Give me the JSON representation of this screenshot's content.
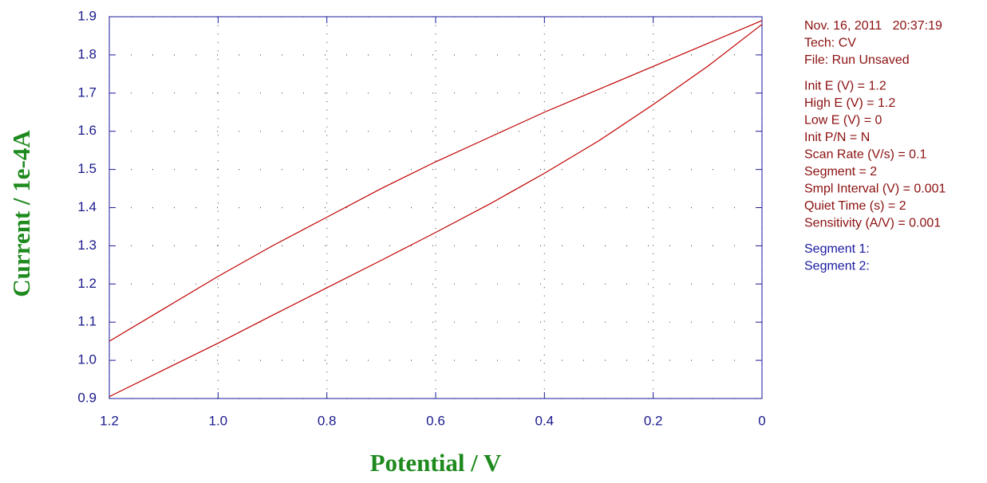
{
  "chart_data": {
    "type": "line",
    "xlabel": "Potential / V",
    "ylabel": "Current / 1e-4A",
    "xlim": [
      1.2,
      0
    ],
    "ylim": [
      0.9,
      1.9
    ],
    "xticks": [
      1.2,
      {
        "value": 1,
        "label": "1.0"
      },
      0.8,
      0.6,
      0.4,
      0.2,
      0
    ],
    "yticks": [
      0.9,
      {
        "value": 1,
        "label": "1.0"
      },
      1.1,
      1.2,
      1.3,
      1.4,
      1.5,
      1.6,
      1.7,
      1.8,
      1.9
    ],
    "grid": true,
    "series": [
      {
        "name": "Segment 1:",
        "color": "#c00000",
        "x": [
          1.2,
          1.1,
          1.0,
          0.9,
          0.8,
          0.7,
          0.6,
          0.5,
          0.4,
          0.3,
          0.2,
          0.1,
          0
        ],
        "values": [
          0.905,
          0.975,
          1.045,
          1.118,
          1.19,
          1.262,
          1.335,
          1.41,
          1.49,
          1.575,
          1.67,
          1.77,
          1.88
        ]
      },
      {
        "name": "Segment 2:",
        "color": "#c00000",
        "x": [
          0,
          0.1,
          0.2,
          0.3,
          0.4,
          0.5,
          0.6,
          0.7,
          0.8,
          0.9,
          1.0,
          1.1,
          1.2
        ],
        "values": [
          1.89,
          1.83,
          1.77,
          1.71,
          1.65,
          1.585,
          1.52,
          1.45,
          1.375,
          1.3,
          1.22,
          1.135,
          1.05
        ]
      }
    ],
    "info": [
      [
        "Nov. 16, 2011   20:37:19",
        "Tech: CV",
        "File: Run Unsaved"
      ],
      [
        "Init E (V) = 1.2",
        "High E (V) = 1.2",
        "Low E (V) = 0",
        "Init P/N = N",
        "Scan Rate (V/s) = 0.1",
        "Segment = 2",
        "Smpl Interval (V) = 0.001",
        "Quiet Time (s) = 2",
        "Sensitivity (A/V) = 0.001"
      ]
    ]
  }
}
